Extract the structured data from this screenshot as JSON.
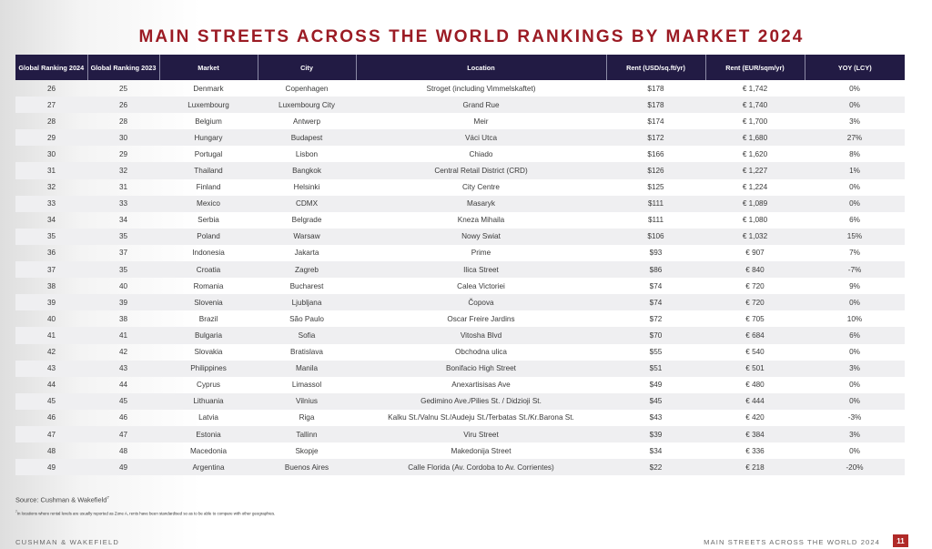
{
  "title": "MAIN STREETS ACROSS THE WORLD RANKINGS BY MARKET 2024",
  "table": {
    "headers": [
      "Global Ranking 2024",
      "Global Ranking 2023",
      "Market",
      "City",
      "Location",
      "Rent (USD/sq.ft/yr)",
      "Rent (EUR/sqm/yr)",
      "YOY (LCY)"
    ],
    "rows": [
      [
        "26",
        "25",
        "Denmark",
        "Copenhagen",
        "Stroget (including Vimmelskaftet)",
        "$178",
        "€ 1,742",
        "0%"
      ],
      [
        "27",
        "26",
        "Luxembourg",
        "Luxembourg City",
        "Grand Rue",
        "$178",
        "€ 1,740",
        "0%"
      ],
      [
        "28",
        "28",
        "Belgium",
        "Antwerp",
        "Meir",
        "$174",
        "€ 1,700",
        "3%"
      ],
      [
        "29",
        "30",
        "Hungary",
        "Budapest",
        "Váci Utca",
        "$172",
        "€ 1,680",
        "27%"
      ],
      [
        "30",
        "29",
        "Portugal",
        "Lisbon",
        "Chiado",
        "$166",
        "€ 1,620",
        "8%"
      ],
      [
        "31",
        "32",
        "Thailand",
        "Bangkok",
        "Central Retail District (CRD)",
        "$126",
        "€ 1,227",
        "1%"
      ],
      [
        "32",
        "31",
        "Finland",
        "Helsinki",
        "City Centre",
        "$125",
        "€ 1,224",
        "0%"
      ],
      [
        "33",
        "33",
        "Mexico",
        "CDMX",
        "Masaryk",
        "$111",
        "€ 1,089",
        "0%"
      ],
      [
        "34",
        "34",
        "Serbia",
        "Belgrade",
        "Kneza Mihaila",
        "$111",
        "€ 1,080",
        "6%"
      ],
      [
        "35",
        "35",
        "Poland",
        "Warsaw",
        "Nowy Swiat",
        "$106",
        "€ 1,032",
        "15%"
      ],
      [
        "36",
        "37",
        "Indonesia",
        "Jakarta",
        "Prime",
        "$93",
        "€ 907",
        "7%"
      ],
      [
        "37",
        "35",
        "Croatia",
        "Zagreb",
        "Ilica Street",
        "$86",
        "€ 840",
        "-7%"
      ],
      [
        "38",
        "40",
        "Romania",
        "Bucharest",
        "Calea Victoriei",
        "$74",
        "€ 720",
        "9%"
      ],
      [
        "39",
        "39",
        "Slovenia",
        "Ljubljana",
        "Čopova",
        "$74",
        "€ 720",
        "0%"
      ],
      [
        "40",
        "38",
        "Brazil",
        "São Paulo",
        "Oscar Freire Jardins",
        "$72",
        "€ 705",
        "10%"
      ],
      [
        "41",
        "41",
        "Bulgaria",
        "Sofia",
        "Vitosha Blvd",
        "$70",
        "€ 684",
        "6%"
      ],
      [
        "42",
        "42",
        "Slovakia",
        "Bratislava",
        "Obchodna ulica",
        "$55",
        "€ 540",
        "0%"
      ],
      [
        "43",
        "43",
        "Philippines",
        "Manila",
        "Bonifacio High Street",
        "$51",
        "€ 501",
        "3%"
      ],
      [
        "44",
        "44",
        "Cyprus",
        "Limassol",
        "Anexartisisas Ave",
        "$49",
        "€ 480",
        "0%"
      ],
      [
        "45",
        "45",
        "Lithuania",
        "Vilnius",
        "Gedimino Ave./Pilies St. /  Didzioji St.",
        "$45",
        "€ 444",
        "0%"
      ],
      [
        "46",
        "46",
        "Latvia",
        "Riga",
        "Kalku St./Valnu St./Audeju St./Terbatas St./Kr.Barona St.",
        "$43",
        "€ 420",
        "-3%"
      ],
      [
        "47",
        "47",
        "Estonia",
        "Tallinn",
        "Viru Street",
        "$39",
        "€ 384",
        "3%"
      ],
      [
        "48",
        "48",
        "Macedonia",
        "Skopje",
        "Makedonija Street",
        "$34",
        "€ 336",
        "0%"
      ],
      [
        "49",
        "49",
        "Argentina",
        "Buenos Aires",
        "Calle Florida (Av. Cordoba to Av. Corrientes)",
        "$22",
        "€ 218",
        "-20%"
      ]
    ]
  },
  "source": {
    "text": "Source: Cushman & Wakefield",
    "marker": "7"
  },
  "footnote": {
    "marker": "7",
    "text": "In locations where rental levels are usually reported as Zone A, rents have been standardised so as to be able to compare with other geographies."
  },
  "footer": {
    "brand": "CUSHMAN & WAKEFIELD",
    "report_title": "MAIN STREETS ACROSS THE WORLD 2024",
    "page_number": "11"
  },
  "colors": {
    "title": "#9b1b24",
    "header_bg": "#221b44",
    "stripe": "#efeff1",
    "page_badge": "#b02a28"
  }
}
